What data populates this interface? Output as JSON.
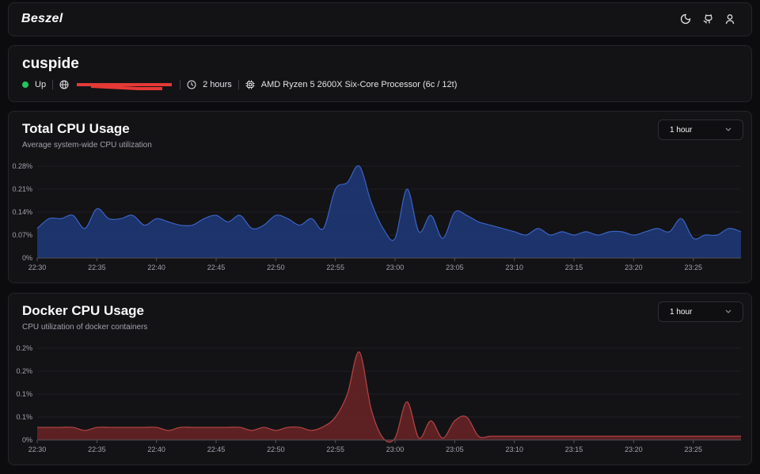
{
  "header": {
    "brand": "Beszel"
  },
  "system": {
    "name": "cuspide",
    "status": "Up",
    "uptime": "2 hours",
    "cpu": "AMD Ryzen 5 2600X Six-Core Processor (6c / 12t)"
  },
  "chart_data": [
    {
      "type": "area",
      "title": "Total CPU Usage",
      "subtitle": "Average system-wide CPU utilization",
      "range": "1 hour",
      "color": "#1e3a7a",
      "stroke": "#3b63c4",
      "grid": true,
      "categories": [
        "22:30",
        null,
        null,
        null,
        null,
        "22:35",
        null,
        null,
        null,
        null,
        "22:40",
        null,
        null,
        null,
        null,
        "22:45",
        null,
        null,
        null,
        null,
        "22:50",
        null,
        null,
        null,
        null,
        "22:55",
        null,
        null,
        null,
        null,
        "23:00",
        null,
        null,
        null,
        null,
        "23:05",
        null,
        null,
        null,
        null,
        "23:10",
        null,
        null,
        null,
        null,
        "23:15",
        null,
        null,
        null,
        null,
        "23:20",
        null,
        null,
        null,
        null,
        "23:25",
        null,
        null,
        null,
        null
      ],
      "values": [
        0.09,
        0.12,
        0.12,
        0.13,
        0.09,
        0.15,
        0.12,
        0.12,
        0.13,
        0.1,
        0.12,
        0.11,
        0.1,
        0.1,
        0.12,
        0.13,
        0.11,
        0.13,
        0.09,
        0.1,
        0.13,
        0.12,
        0.1,
        0.12,
        0.09,
        0.21,
        0.23,
        0.28,
        0.17,
        0.09,
        0.06,
        0.21,
        0.08,
        0.13,
        0.06,
        0.14,
        0.13,
        0.11,
        0.1,
        0.09,
        0.08,
        0.07,
        0.09,
        0.07,
        0.08,
        0.07,
        0.08,
        0.07,
        0.08,
        0.08,
        0.07,
        0.08,
        0.09,
        0.08,
        0.12,
        0.06,
        0.07,
        0.07,
        0.09,
        0.08
      ],
      "ylim": [
        0,
        0.28
      ],
      "yticks": [
        {
          "value": 0,
          "label": "0%"
        },
        {
          "value": 0.07,
          "label": "0.07%"
        },
        {
          "value": 0.14,
          "label": "0.14%"
        },
        {
          "value": 0.21,
          "label": "0.21%"
        },
        {
          "value": 0.28,
          "label": "0.28%"
        }
      ]
    },
    {
      "type": "area",
      "title": "Docker CPU Usage",
      "subtitle": "CPU utilization of docker containers",
      "range": "1 hour",
      "color": "#6b2426",
      "stroke": "#b84445",
      "grid": true,
      "categories": [
        "22:30",
        null,
        null,
        null,
        null,
        "22:35",
        null,
        null,
        null,
        null,
        "22:40",
        null,
        null,
        null,
        null,
        "22:45",
        null,
        null,
        null,
        null,
        "22:50",
        null,
        null,
        null,
        null,
        "22:55",
        null,
        null,
        null,
        null,
        "23:00",
        null,
        null,
        null,
        null,
        "23:05",
        null,
        null,
        null,
        null,
        "23:10",
        null,
        null,
        null,
        null,
        "23:15",
        null,
        null,
        null,
        null,
        "23:20",
        null,
        null,
        null,
        null,
        "23:25",
        null,
        null,
        null,
        null
      ],
      "values": [
        0.033,
        0.033,
        0.033,
        0.033,
        0.025,
        0.033,
        0.033,
        0.033,
        0.033,
        0.033,
        0.033,
        0.025,
        0.033,
        0.033,
        0.033,
        0.033,
        0.033,
        0.033,
        0.025,
        0.033,
        0.025,
        0.033,
        0.033,
        0.025,
        0.035,
        0.06,
        0.12,
        0.23,
        0.08,
        0.005,
        0.005,
        0.1,
        0.005,
        0.05,
        0.005,
        0.05,
        0.06,
        0.01,
        0.01,
        0.01,
        0.01,
        0.01,
        0.01,
        0.01,
        0.01,
        0.01,
        0.01,
        0.01,
        0.01,
        0.01,
        0.01,
        0.01,
        0.01,
        0.01,
        0.01,
        0.01,
        0.01,
        0.01,
        0.01,
        0.01
      ],
      "ylim": [
        0,
        0.24
      ],
      "yticks": [
        {
          "value": 0,
          "label": "0%"
        },
        {
          "value": 0.06,
          "label": "0.1%"
        },
        {
          "value": 0.12,
          "label": "0.1%"
        },
        {
          "value": 0.18,
          "label": "0.2%"
        },
        {
          "value": 0.24,
          "label": "0.2%"
        }
      ]
    }
  ]
}
